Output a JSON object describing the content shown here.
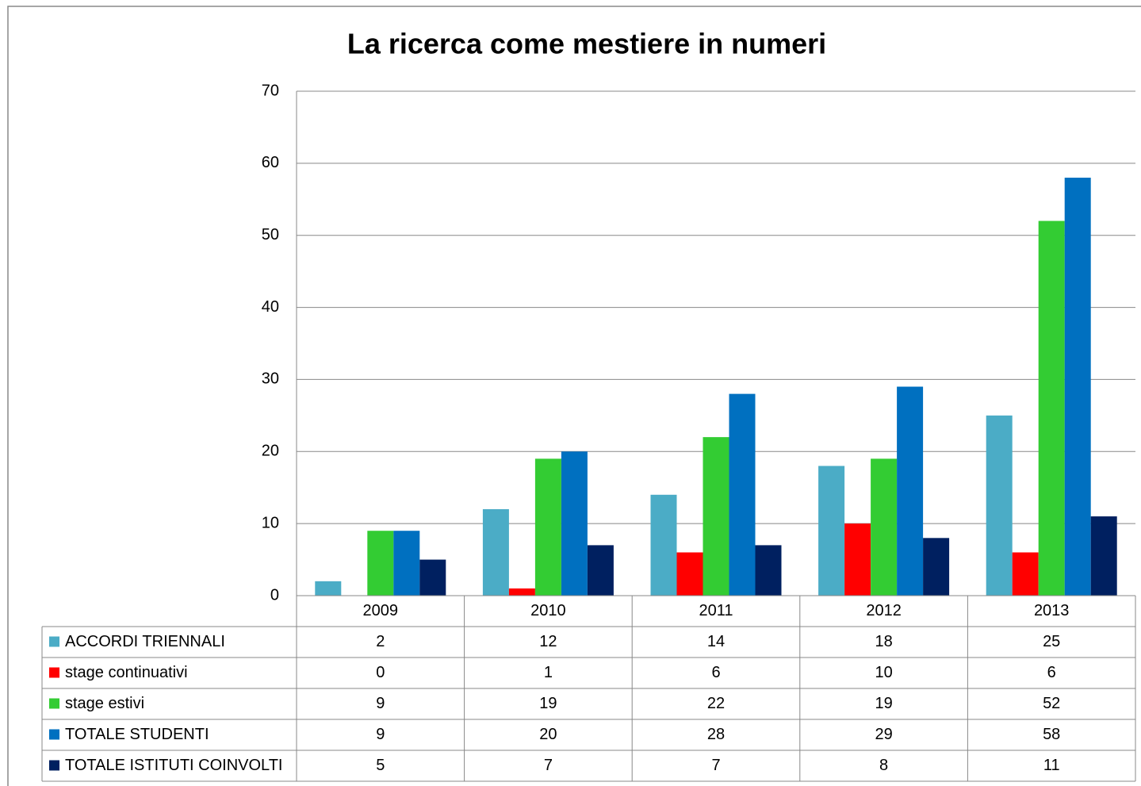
{
  "chart_data": {
    "type": "bar",
    "title": "La ricerca come mestiere in numeri",
    "categories": [
      "2009",
      "2010",
      "2011",
      "2012",
      "2013"
    ],
    "series": [
      {
        "name": "ACCORDI TRIENNALI",
        "color": "#4bacc6",
        "values": [
          2,
          12,
          14,
          18,
          25
        ]
      },
      {
        "name": "stage continuativi",
        "color": "#ff0000",
        "values": [
          0,
          1,
          6,
          10,
          6
        ]
      },
      {
        "name": "stage estivi",
        "color": "#33cc33",
        "values": [
          9,
          19,
          22,
          19,
          52
        ]
      },
      {
        "name": "TOTALE STUDENTI",
        "color": "#0070c0",
        "values": [
          9,
          20,
          28,
          29,
          58
        ]
      },
      {
        "name": "TOTALE ISTITUTI COINVOLTI",
        "color": "#002060",
        "values": [
          5,
          7,
          7,
          8,
          11
        ]
      }
    ],
    "ylim": [
      0,
      70
    ],
    "yticks": [
      0,
      10,
      20,
      30,
      40,
      50,
      60,
      70
    ],
    "grid": true
  }
}
